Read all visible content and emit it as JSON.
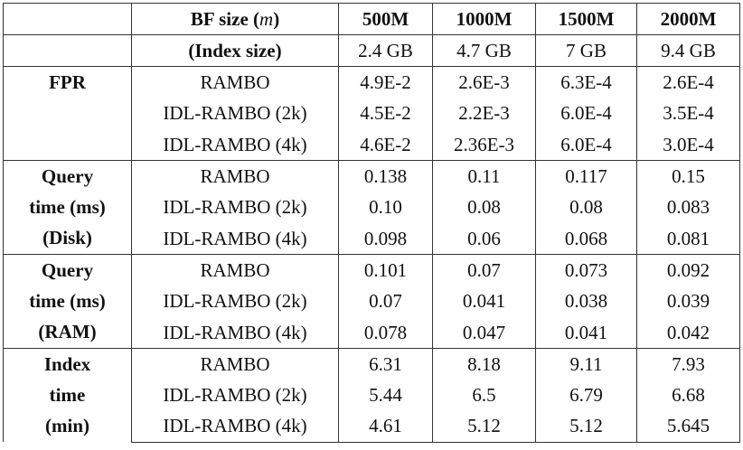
{
  "table": {
    "header": {
      "bf_size_label": "BF size (",
      "bf_size_var": "m",
      "bf_size_close": ")",
      "index_size_label": "(Index size)",
      "columns": [
        "500M",
        "1000M",
        "1500M",
        "2000M"
      ],
      "index_sizes": [
        "2.4 GB",
        "4.7 GB",
        "7 GB",
        "9.4 GB"
      ]
    },
    "groups": [
      {
        "label_lines": [
          "FPR"
        ],
        "rows": [
          {
            "method": "RAMBO",
            "values": [
              "4.9E-2",
              "2.6E-3",
              "6.3E-4",
              "2.6E-4"
            ]
          },
          {
            "method": "IDL-RAMBO (2k)",
            "values": [
              "4.5E-2",
              "2.2E-3",
              "6.0E-4",
              "3.5E-4"
            ]
          },
          {
            "method": "IDL-RAMBO (4k)",
            "values": [
              "4.6E-2",
              "2.36E-3",
              "6.0E-4",
              "3.0E-4"
            ]
          }
        ]
      },
      {
        "label_lines": [
          "Query",
          "time (ms)",
          "(Disk)"
        ],
        "rows": [
          {
            "method": "RAMBO",
            "values": [
              "0.138",
              "0.11",
              "0.117",
              "0.15"
            ]
          },
          {
            "method": "IDL-RAMBO (2k)",
            "values": [
              "0.10",
              "0.08",
              "0.08",
              "0.083"
            ]
          },
          {
            "method": "IDL-RAMBO (4k)",
            "values": [
              "0.098",
              "0.06",
              "0.068",
              "0.081"
            ]
          }
        ]
      },
      {
        "label_lines": [
          "Query",
          "time (ms)",
          "(RAM)"
        ],
        "rows": [
          {
            "method": "RAMBO",
            "values": [
              "0.101",
              "0.07",
              "0.073",
              "0.092"
            ]
          },
          {
            "method": "IDL-RAMBO (2k)",
            "values": [
              "0.07",
              "0.041",
              "0.038",
              "0.039"
            ]
          },
          {
            "method": "IDL-RAMBO (4k)",
            "values": [
              "0.078",
              "0.047",
              "0.041",
              "0.042"
            ]
          }
        ]
      },
      {
        "label_lines": [
          "Index",
          "time",
          "(min)"
        ],
        "rows": [
          {
            "method": "RAMBO",
            "values": [
              "6.31",
              "8.18",
              "9.11",
              "7.93"
            ]
          },
          {
            "method": "IDL-RAMBO (2k)",
            "values": [
              "5.44",
              "6.5",
              "6.79",
              "6.68"
            ]
          },
          {
            "method": "IDL-RAMBO (4k)",
            "values": [
              "4.61",
              "5.12",
              "5.12",
              "5.645"
            ]
          }
        ]
      }
    ]
  }
}
